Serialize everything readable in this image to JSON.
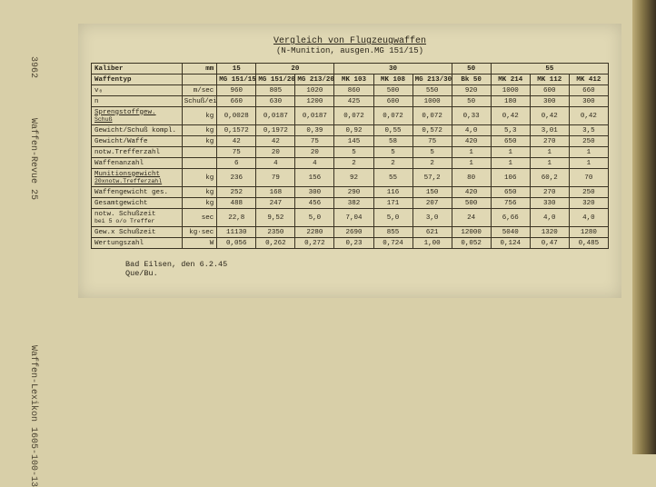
{
  "side": {
    "num": "3962",
    "mag": "Waffen-Revue 25",
    "lex": "Waffen-Lexikon 1605-100-13"
  },
  "title": "Vergleich von Flugzeugwaffen",
  "subtitle": "(N-Munition, ausgen.MG 151/15)",
  "calibers": {
    "label": "Kaliber",
    "unit": "mm",
    "groups": [
      "15",
      "20",
      "30",
      "50",
      "55"
    ]
  },
  "weapons": {
    "label": "Waffentyp",
    "names": [
      "MG 151/15",
      "MG 151/20",
      "MG 213/20",
      "MK 103",
      "MK 108",
      "MG 213/30",
      "Bk 50",
      "MK 214",
      "MK 112",
      "MK 412"
    ]
  },
  "rows": [
    {
      "label": "v₀",
      "unit": "m/sec",
      "v": [
        "960",
        "805",
        "1020",
        "860",
        "500",
        "550",
        "920",
        "1000",
        "600",
        "660"
      ]
    },
    {
      "label": "n",
      "unit": "Schuß/ein",
      "v": [
        "660",
        "630",
        "1200",
        "425",
        "600",
        "1000",
        "50",
        "180",
        "300",
        "300"
      ]
    },
    {
      "label": "Sprengstoffgew.",
      "label2": "Schuß",
      "unit": "kg",
      "u": true,
      "v": [
        "0,0028",
        "0,0187",
        "0,0187",
        "0,072",
        "0,072",
        "0,072",
        "0,33",
        "0,42",
        "0,42",
        "0,42"
      ]
    },
    {
      "label": "Gewicht/Schuß kompl.",
      "unit": "kg",
      "v": [
        "0,1572",
        "0,1972",
        "0,39",
        "0,92",
        "0,55",
        "0,572",
        "4,0",
        "5,3",
        "3,01",
        "3,5"
      ]
    },
    {
      "label": "Gewicht/Waffe",
      "unit": "kg",
      "v": [
        "42",
        "42",
        "75",
        "145",
        "58",
        "75",
        "420",
        "650",
        "270",
        "250"
      ]
    },
    {
      "label": "notw.Trefferzahl",
      "unit": "",
      "v": [
        "75",
        "20",
        "20",
        "5",
        "5",
        "5",
        "1",
        "1",
        "1",
        "1"
      ]
    },
    {
      "label": "Waffenanzahl",
      "unit": "",
      "v": [
        "6",
        "4",
        "4",
        "2",
        "2",
        "2",
        "1",
        "1",
        "1",
        "1"
      ]
    },
    {
      "label": "Munitionsgewicht",
      "label2": "20xnotw.Trefferzahl",
      "unit": "kg",
      "u": true,
      "v": [
        "236",
        "79",
        "156",
        "92",
        "55",
        "57,2",
        "80",
        "106",
        "60,2",
        "70"
      ]
    },
    {
      "label": "Waffengewicht ges.",
      "unit": "kg",
      "v": [
        "252",
        "168",
        "300",
        "290",
        "116",
        "150",
        "420",
        "650",
        "270",
        "250"
      ]
    },
    {
      "label": "Gesamtgewicht",
      "unit": "kg",
      "v": [
        "488",
        "247",
        "456",
        "382",
        "171",
        "207",
        "500",
        "756",
        "330",
        "320"
      ]
    },
    {
      "label": "notw. Schußzeit",
      "label2": "bei 5 o/o Treffer",
      "unit": "sec",
      "v": [
        "22,8",
        "9,52",
        "5,0",
        "7,04",
        "5,0",
        "3,0",
        "24",
        "6,66",
        "4,0",
        "4,0"
      ]
    },
    {
      "label": "Gew.x Schußzeit",
      "unit": "kg·sec",
      "v": [
        "11130",
        "2350",
        "2280",
        "2690",
        "855",
        "621",
        "12000",
        "5040",
        "1320",
        "1280"
      ]
    },
    {
      "label": "Wertungszahl",
      "unit": "W",
      "v": [
        "0,056",
        "0,262",
        "0,272",
        "0,23",
        "0,724",
        "1,00",
        "0,052",
        "0,124",
        "0,47",
        "0,485"
      ]
    }
  ],
  "footer": {
    "line1": "Bad Eilsen, den 6.2.45",
    "line2": "Que/Bu."
  }
}
